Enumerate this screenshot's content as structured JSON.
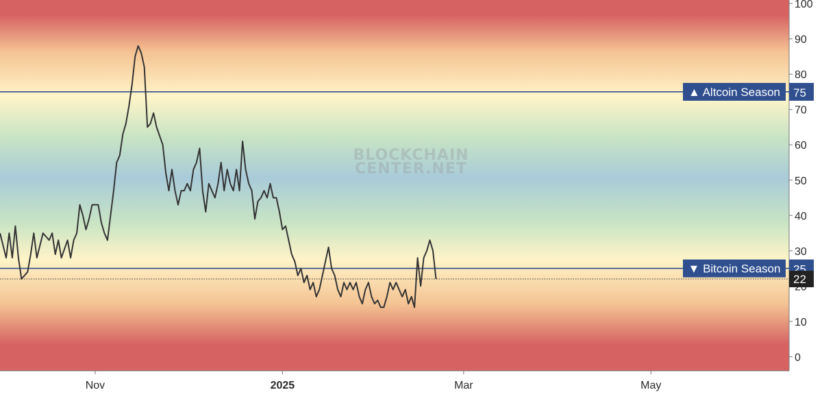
{
  "watermark": {
    "line1": "BLOCKCHAIN",
    "line2": "CENTER.NET"
  },
  "colors": {
    "band_red": "#d66262",
    "band_orange": "#f4c393",
    "band_cream": "#fff4c8",
    "band_green": "#c8e4c4",
    "band_blue": "#a9cbd9",
    "line": "#333333",
    "threshold": "#2f4f8f",
    "label_bg": "#2f4f8f",
    "current_bg": "#222222"
  },
  "chart_data": {
    "type": "line",
    "title": "",
    "xlabel": "",
    "ylabel": "",
    "ylim": [
      -4,
      101
    ],
    "yticks": [
      0,
      10,
      20,
      30,
      40,
      50,
      60,
      70,
      80,
      90,
      100
    ],
    "xticks": [
      {
        "label": "Nov",
        "date": "2024-11-01",
        "bold": false
      },
      {
        "label": "2025",
        "date": "2025-01-01",
        "bold": true
      },
      {
        "label": "Mar",
        "date": "2025-03-01",
        "bold": false
      },
      {
        "label": "May",
        "date": "2025-05-01",
        "bold": false
      }
    ],
    "thresholds": [
      {
        "label": "▲ Altcoin Season",
        "value": 75
      },
      {
        "label": "▼ Bitcoin Season",
        "value": 25
      }
    ],
    "current": {
      "value": 22,
      "label": "22"
    },
    "series": [
      {
        "points": [
          [
            "2024-10-01",
            35
          ],
          [
            "2024-10-03",
            28
          ],
          [
            "2024-10-04",
            35
          ],
          [
            "2024-10-05",
            28
          ],
          [
            "2024-10-06",
            37
          ],
          [
            "2024-10-07",
            28
          ],
          [
            "2024-10-08",
            22
          ],
          [
            "2024-10-10",
            24
          ],
          [
            "2024-10-11",
            29
          ],
          [
            "2024-10-12",
            35
          ],
          [
            "2024-10-13",
            28
          ],
          [
            "2024-10-15",
            35
          ],
          [
            "2024-10-17",
            33
          ],
          [
            "2024-10-18",
            35
          ],
          [
            "2024-10-19",
            29
          ],
          [
            "2024-10-20",
            33
          ],
          [
            "2024-10-21",
            28
          ],
          [
            "2024-10-23",
            33
          ],
          [
            "2024-10-24",
            28
          ],
          [
            "2024-10-25",
            33
          ],
          [
            "2024-10-26",
            35
          ],
          [
            "2024-10-27",
            43
          ],
          [
            "2024-10-28",
            40
          ],
          [
            "2024-10-29",
            36
          ],
          [
            "2024-10-30",
            39
          ],
          [
            "2024-10-31",
            43
          ],
          [
            "2024-11-02",
            43
          ],
          [
            "2024-11-03",
            38
          ],
          [
            "2024-11-04",
            35
          ],
          [
            "2024-11-05",
            33
          ],
          [
            "2024-11-06",
            40
          ],
          [
            "2024-11-07",
            47
          ],
          [
            "2024-11-08",
            55
          ],
          [
            "2024-11-09",
            57
          ],
          [
            "2024-11-10",
            63
          ],
          [
            "2024-11-11",
            66
          ],
          [
            "2024-11-12",
            71
          ],
          [
            "2024-11-13",
            77
          ],
          [
            "2024-11-14",
            85
          ],
          [
            "2024-11-15",
            88
          ],
          [
            "2024-11-16",
            86
          ],
          [
            "2024-11-17",
            82
          ],
          [
            "2024-11-18",
            65
          ],
          [
            "2024-11-19",
            66
          ],
          [
            "2024-11-20",
            69
          ],
          [
            "2024-11-21",
            65
          ],
          [
            "2024-11-23",
            60
          ],
          [
            "2024-11-24",
            52
          ],
          [
            "2024-11-25",
            47
          ],
          [
            "2024-11-26",
            53
          ],
          [
            "2024-11-27",
            47
          ],
          [
            "2024-11-28",
            43
          ],
          [
            "2024-11-29",
            47
          ],
          [
            "2024-11-30",
            47
          ],
          [
            "2024-12-01",
            49
          ],
          [
            "2024-12-02",
            47
          ],
          [
            "2024-12-03",
            53
          ],
          [
            "2024-12-04",
            55
          ],
          [
            "2024-12-05",
            59
          ],
          [
            "2024-12-06",
            47
          ],
          [
            "2024-12-07",
            41
          ],
          [
            "2024-12-08",
            49
          ],
          [
            "2024-12-09",
            47
          ],
          [
            "2024-12-10",
            45
          ],
          [
            "2024-12-11",
            49
          ],
          [
            "2024-12-12",
            55
          ],
          [
            "2024-12-13",
            47
          ],
          [
            "2024-12-14",
            53
          ],
          [
            "2024-12-15",
            49
          ],
          [
            "2024-12-16",
            47
          ],
          [
            "2024-12-17",
            53
          ],
          [
            "2024-12-18",
            47
          ],
          [
            "2024-12-19",
            61
          ],
          [
            "2024-12-20",
            53
          ],
          [
            "2024-12-21",
            49
          ],
          [
            "2024-12-22",
            47
          ],
          [
            "2024-12-23",
            39
          ],
          [
            "2024-12-24",
            44
          ],
          [
            "2024-12-25",
            45
          ],
          [
            "2024-12-26",
            47
          ],
          [
            "2024-12-27",
            45
          ],
          [
            "2024-12-28",
            49
          ],
          [
            "2024-12-29",
            45
          ],
          [
            "2024-12-30",
            45
          ],
          [
            "2024-12-31",
            41
          ],
          [
            "2025-01-01",
            36
          ],
          [
            "2025-01-02",
            37
          ],
          [
            "2025-01-03",
            33
          ],
          [
            "2025-01-04",
            29
          ],
          [
            "2025-01-05",
            27
          ],
          [
            "2025-01-06",
            23
          ],
          [
            "2025-01-07",
            25
          ],
          [
            "2025-01-08",
            21
          ],
          [
            "2025-01-09",
            23
          ],
          [
            "2025-01-10",
            19
          ],
          [
            "2025-01-11",
            21
          ],
          [
            "2025-01-12",
            17
          ],
          [
            "2025-01-13",
            19
          ],
          [
            "2025-01-14",
            23
          ],
          [
            "2025-01-15",
            27
          ],
          [
            "2025-01-16",
            31
          ],
          [
            "2025-01-17",
            25
          ],
          [
            "2025-01-18",
            23
          ],
          [
            "2025-01-19",
            19
          ],
          [
            "2025-01-20",
            17
          ],
          [
            "2025-01-21",
            21
          ],
          [
            "2025-01-22",
            19
          ],
          [
            "2025-01-23",
            21
          ],
          [
            "2025-01-24",
            19
          ],
          [
            "2025-01-25",
            21
          ],
          [
            "2025-01-26",
            17
          ],
          [
            "2025-01-27",
            15
          ],
          [
            "2025-01-28",
            19
          ],
          [
            "2025-01-29",
            21
          ],
          [
            "2025-01-30",
            17
          ],
          [
            "2025-01-31",
            15
          ],
          [
            "2025-02-01",
            16
          ],
          [
            "2025-02-02",
            14
          ],
          [
            "2025-02-03",
            14
          ],
          [
            "2025-02-04",
            17
          ],
          [
            "2025-02-05",
            21
          ],
          [
            "2025-02-06",
            19
          ],
          [
            "2025-02-07",
            21
          ],
          [
            "2025-02-08",
            19
          ],
          [
            "2025-02-09",
            17
          ],
          [
            "2025-02-10",
            19
          ],
          [
            "2025-02-11",
            15
          ],
          [
            "2025-02-12",
            17
          ],
          [
            "2025-02-13",
            14
          ],
          [
            "2025-02-14",
            28
          ],
          [
            "2025-02-15",
            20
          ],
          [
            "2025-02-16",
            28
          ],
          [
            "2025-02-17",
            30
          ],
          [
            "2025-02-18",
            33
          ],
          [
            "2025-02-19",
            30
          ],
          [
            "2025-02-20",
            22
          ]
        ]
      }
    ]
  }
}
